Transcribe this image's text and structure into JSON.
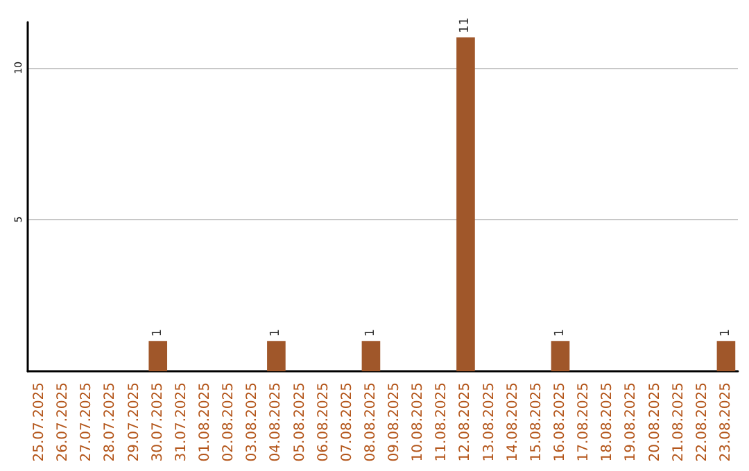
{
  "chart_data": {
    "type": "bar",
    "categories": [
      "25.07.2025",
      "26.07.2025",
      "27.07.2025",
      "28.07.2025",
      "29.07.2025",
      "30.07.2025",
      "31.07.2025",
      "01.08.2025",
      "02.08.2025",
      "03.08.2025",
      "04.08.2025",
      "05.08.2025",
      "06.08.2025",
      "07.08.2025",
      "08.08.2025",
      "09.08.2025",
      "10.08.2025",
      "11.08.2025",
      "12.08.2025",
      "13.08.2025",
      "14.08.2025",
      "15.08.2025",
      "16.08.2025",
      "17.08.2025",
      "18.08.2025",
      "19.08.2025",
      "20.08.2025",
      "21.08.2025",
      "22.08.2025",
      "23.08.2025"
    ],
    "values": [
      0,
      0,
      0,
      0,
      0,
      1,
      0,
      0,
      0,
      0,
      1,
      0,
      0,
      0,
      1,
      0,
      0,
      0,
      11,
      0,
      0,
      0,
      1,
      0,
      0,
      0,
      0,
      0,
      0,
      1
    ],
    "value_labels": [
      null,
      null,
      null,
      null,
      null,
      "1",
      null,
      null,
      null,
      null,
      "1",
      null,
      null,
      null,
      "1",
      null,
      null,
      null,
      "11",
      null,
      null,
      null,
      "1",
      null,
      null,
      null,
      null,
      null,
      null,
      "1"
    ],
    "color": "#a0572a",
    "ylim": [
      0,
      11.5
    ],
    "yticks": [
      5,
      10
    ],
    "grid": "y"
  }
}
